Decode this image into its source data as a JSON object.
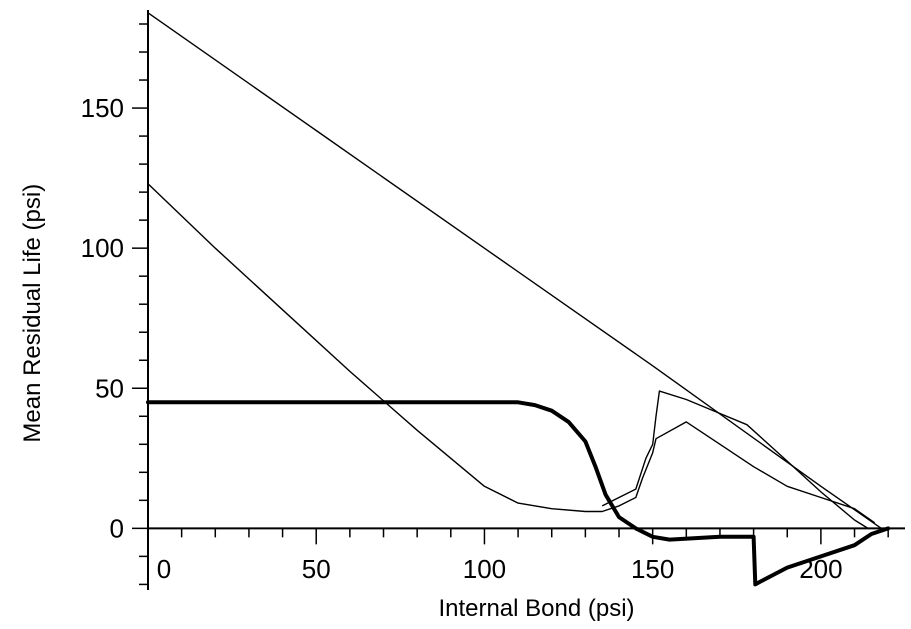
{
  "chart_data": {
    "type": "line",
    "title": "",
    "xlabel": "Internal Bond (psi)",
    "ylabel": "Mean Residual Life (psi)",
    "xlim": [
      0,
      225
    ],
    "ylim": [
      -22,
      185
    ],
    "x_ticks": [
      0,
      50,
      100,
      150,
      200
    ],
    "x_tick_labels": [
      "0",
      "50",
      "100",
      "150",
      "200"
    ],
    "y_ticks": [
      0,
      50,
      100,
      150
    ],
    "y_tick_labels": [
      "0",
      "50",
      "100",
      "150"
    ],
    "grid": false,
    "legend": "none",
    "series": [
      {
        "style": "thin",
        "x": [
          0,
          50,
          100,
          150,
          200,
          218
        ],
        "y": [
          184,
          142,
          100,
          58,
          15,
          0
        ]
      },
      {
        "style": "thin",
        "x": [
          0,
          20,
          40,
          60,
          80,
          100,
          110,
          120,
          130,
          135,
          140,
          145,
          147,
          150,
          151,
          160,
          170,
          180,
          190,
          200,
          210,
          216
        ],
        "y": [
          123,
          100,
          78,
          56,
          35,
          15,
          9,
          7,
          6,
          6,
          8,
          11,
          18,
          27,
          32,
          38,
          30,
          22,
          15,
          11,
          7,
          2
        ]
      },
      {
        "style": "thin",
        "x": [
          135,
          140,
          145,
          148,
          150,
          151,
          152,
          160,
          170,
          178,
          190,
          200,
          210,
          214
        ],
        "y": [
          8,
          11,
          14,
          25,
          30,
          40,
          49,
          46,
          41,
          37,
          24,
          13,
          3,
          0
        ]
      },
      {
        "style": "bold",
        "x": [
          0,
          50,
          100,
          110,
          115,
          120,
          125,
          130,
          133,
          136,
          140,
          145,
          150,
          155,
          170,
          180,
          180.5,
          182,
          190,
          200,
          210,
          215,
          220
        ],
        "y": [
          45,
          45,
          45,
          45,
          44,
          42,
          38,
          31,
          22,
          12,
          4,
          0,
          -3,
          -4,
          -3,
          -3,
          -20,
          -19,
          -14,
          -10,
          -6,
          -2,
          0
        ]
      }
    ]
  }
}
